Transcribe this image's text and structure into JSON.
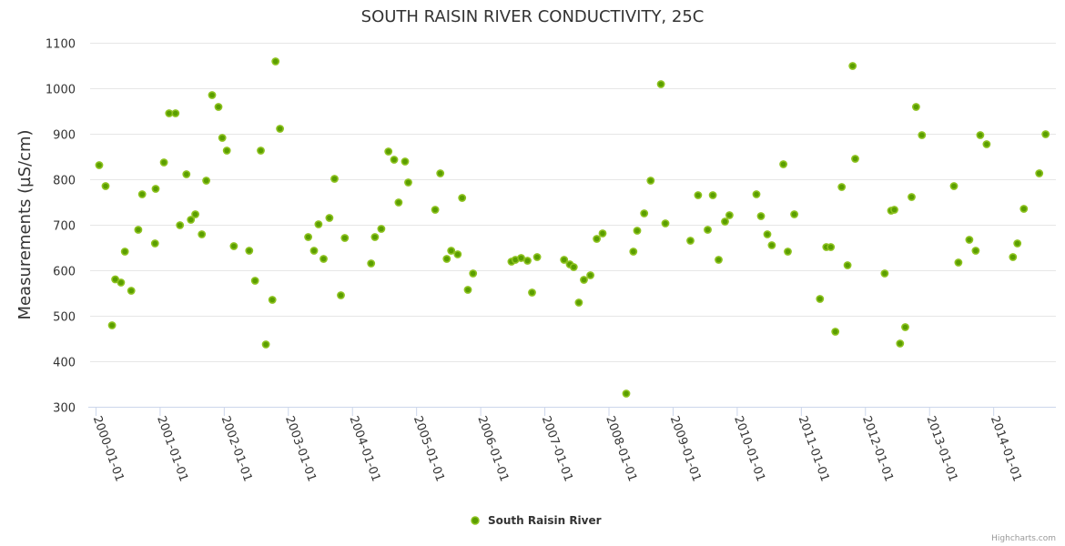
{
  "chart_data": {
    "type": "scatter",
    "title": "SOUTH RAISIN RIVER CONDUCTIVITY, 25C",
    "xlabel": "",
    "ylabel": "Measurements (µS/cm)",
    "x_units": "decimal year",
    "xlim": [
      1999.88,
      2014.97
    ],
    "ylim": [
      300,
      1100
    ],
    "yticks": [
      300,
      400,
      500,
      600,
      700,
      800,
      900,
      1000,
      1100
    ],
    "ytick_labels": [
      "300",
      "400",
      "500",
      "600",
      "700",
      "800",
      "900",
      "1000",
      "1100"
    ],
    "xticks": [
      2000,
      2001,
      2002,
      2003,
      2004,
      2005,
      2006,
      2007,
      2008,
      2009,
      2010,
      2011,
      2012,
      2013,
      2014
    ],
    "xtick_labels": [
      "2000-01-01",
      "2001-01-01",
      "2002-01-01",
      "2003-01-01",
      "2004-01-01",
      "2005-01-01",
      "2006-01-01",
      "2007-01-01",
      "2008-01-01",
      "2009-01-01",
      "2010-01-01",
      "2011-01-01",
      "2012-01-01",
      "2013-01-01",
      "2014-01-01"
    ],
    "grid": true,
    "legend_position": "bottom-center",
    "series": [
      {
        "name": "South Raisin River",
        "color": "#5a9e00",
        "border_color": "#8dc21f",
        "x": [
          2000.05,
          2000.15,
          2000.25,
          2000.3,
          2000.39,
          2000.45,
          2000.55,
          2000.66,
          2000.72,
          2000.92,
          2000.93,
          2001.06,
          2001.14,
          2001.24,
          2001.31,
          2001.41,
          2001.48,
          2001.55,
          2001.65,
          2001.72,
          2001.81,
          2001.91,
          2001.97,
          2002.04,
          2002.15,
          2002.39,
          2002.48,
          2002.57,
          2002.65,
          2002.75,
          2002.8,
          2002.87,
          2003.31,
          2003.4,
          2003.47,
          2003.55,
          2003.64,
          2003.72,
          2003.82,
          2003.88,
          2004.29,
          2004.35,
          2004.45,
          2004.56,
          2004.65,
          2004.72,
          2004.82,
          2004.87,
          2005.29,
          2005.37,
          2005.47,
          2005.54,
          2005.64,
          2005.71,
          2005.8,
          2005.88,
          2006.48,
          2006.54,
          2006.63,
          2006.73,
          2006.8,
          2006.88,
          2007.3,
          2007.39,
          2007.45,
          2007.53,
          2007.61,
          2007.71,
          2007.81,
          2007.9,
          2008.27,
          2008.38,
          2008.44,
          2008.55,
          2008.65,
          2008.81,
          2008.88,
          2009.27,
          2009.39,
          2009.54,
          2009.62,
          2009.71,
          2009.81,
          2009.88,
          2010.3,
          2010.37,
          2010.47,
          2010.54,
          2010.72,
          2010.79,
          2010.89,
          2011.29,
          2011.39,
          2011.46,
          2011.53,
          2011.63,
          2011.72,
          2011.8,
          2011.84,
          2012.3,
          2012.4,
          2012.45,
          2012.54,
          2012.62,
          2012.72,
          2012.79,
          2012.88,
          2013.38,
          2013.45,
          2013.62,
          2013.72,
          2013.79,
          2013.89,
          2014.3,
          2014.37,
          2014.47,
          2014.71,
          2014.81
        ],
        "y": [
          831,
          785,
          479,
          580,
          573,
          641,
          555,
          689,
          767,
          659,
          779,
          837,
          945,
          945,
          699,
          811,
          711,
          723,
          679,
          797,
          985,
          959,
          891,
          863,
          653,
          643,
          577,
          863,
          437,
          535,
          1059,
          911,
          673,
          643,
          701,
          625,
          715,
          801,
          545,
          671,
          615,
          673,
          691,
          861,
          843,
          749,
          839,
          793,
          733,
          813,
          625,
          643,
          635,
          759,
          557,
          593,
          619,
          623,
          627,
          621,
          551,
          629,
          623,
          613,
          607,
          529,
          579,
          589,
          669,
          681,
          329,
          641,
          687,
          725,
          797,
          1009,
          703,
          665,
          765,
          689,
          765,
          623,
          707,
          721,
          767,
          719,
          679,
          655,
          833,
          641,
          723,
          537,
          651,
          651,
          465,
          783,
          611,
          1049,
          845,
          593,
          731,
          733,
          439,
          475,
          761,
          959,
          897,
          785,
          617,
          667,
          643,
          897,
          877,
          629,
          659,
          735,
          813,
          899
        ]
      }
    ],
    "credits": "Highcharts.com"
  }
}
